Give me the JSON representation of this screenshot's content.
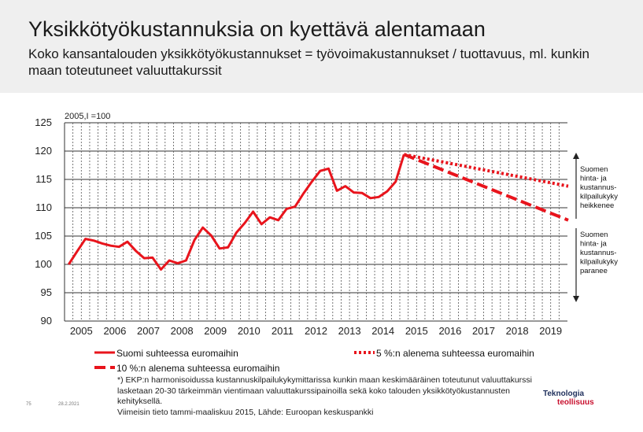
{
  "title": "Yksikkötyökustannuksia on kyettävä alentamaan",
  "subtitle": "Koko kansantalouden yksikkötyökustannukset = työvoimakustannukset / tuottavuus, ml. kunkin maan toteutuneet valuuttakurssit",
  "chart_data": {
    "type": "line",
    "index_label": "2005,I =100",
    "ylim": [
      90,
      125
    ],
    "y_ticks": [
      "125",
      "120",
      "115",
      "110",
      "105",
      "100",
      "95",
      "90"
    ],
    "x_ticks": [
      "2005",
      "2006",
      "2007",
      "2008",
      "2009",
      "2010",
      "2011",
      "2012",
      "2013",
      "2014",
      "2015",
      "2016",
      "2017",
      "2018",
      "2019"
    ],
    "grid": true,
    "series": [
      {
        "name": "Suomi suhteessa euromaihin",
        "style": "solid",
        "color": "#e8141c",
        "start": "2005Q1",
        "values": [
          100.0,
          102.3,
          104.5,
          104.2,
          103.7,
          103.3,
          103.1,
          104.0,
          102.4,
          101.1,
          101.2,
          99.1,
          100.7,
          100.2,
          100.7,
          104.3,
          106.5,
          105.1,
          102.8,
          103.0,
          105.6,
          107.3,
          109.3,
          107.1,
          108.3,
          107.8,
          109.8,
          110.2,
          112.5,
          114.6,
          116.5,
          116.9,
          113.0,
          113.8,
          112.7,
          112.6,
          111.7,
          111.9,
          112.9,
          114.6,
          119.4
        ]
      },
      {
        "name": "5 %:n alenema suhteessa euromaihin",
        "style": "dotted",
        "color": "#e8141c",
        "start": "2015Q1",
        "values": [
          119.4,
          113.8
        ]
      },
      {
        "name": "10 %:n alenema suhteessa euromaihin",
        "style": "dashed",
        "color": "#e8141c",
        "start": "2015Q1",
        "values": [
          119.4,
          107.8
        ]
      }
    ],
    "annotations": [
      {
        "text": [
          "Suomen",
          "hinta- ja",
          "kustannus-",
          "kilpailukyky",
          "heikkenee"
        ],
        "arrow": "up"
      },
      {
        "text": [
          "Suomen",
          "hinta- ja",
          "kustannus-",
          "kilpailukyky",
          "paranee"
        ],
        "arrow": "down"
      }
    ]
  },
  "footnote": [
    "*) EKP:n harmonisoidussa kustannuskilpailukykymittarissa kunkin maan keskimääräinen toteutunut valuuttakurssi",
    "lasketaan 20-30 tärkeimmän vientimaan valuuttakurssipainoilla sekä koko talouden yksikkötyökustannusten",
    "kehityksellä.",
    "Viimeisin tieto tammi-maaliskuu 2015, Lähde: Euroopan keskuspankki"
  ],
  "slide_number": "75",
  "date": "28.2.2021",
  "logo": {
    "line1": "Teknologia",
    "line2": "teollisuus",
    "color1": "#1f2f5c",
    "color2": "#c8102e"
  }
}
